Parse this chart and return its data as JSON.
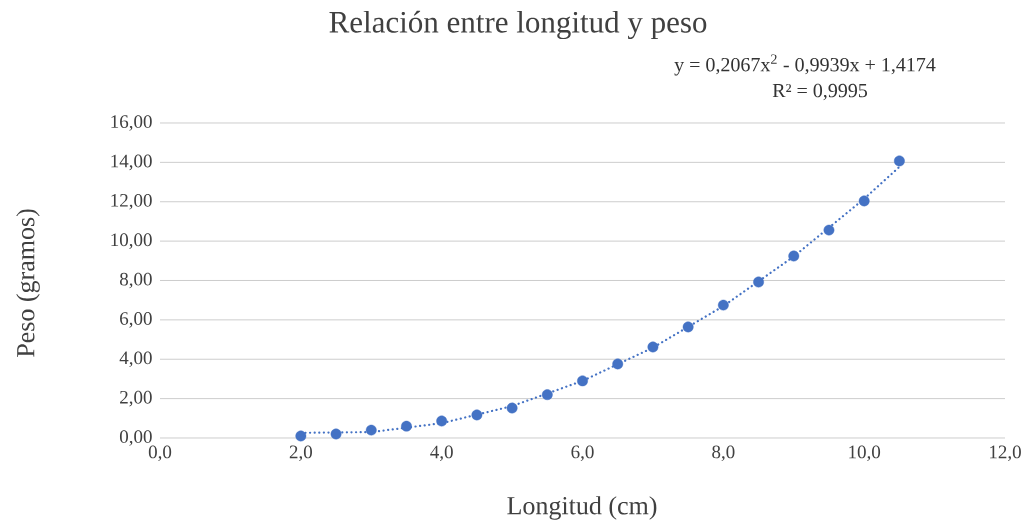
{
  "chart_data": {
    "type": "scatter",
    "title": "Relación entre longitud y peso",
    "xlabel": "Longitud (cm)",
    "ylabel": "Peso (gramos)",
    "annotations": [
      "y = 0,2067x$^{2}$ - 0,9939x + 1,4174",
      "R² = 0,9995"
    ],
    "series": [
      {
        "color": "#4472c4",
        "marker": "circle",
        "x": [
          2.0,
          2.5,
          3.0,
          3.5,
          4.0,
          4.5,
          5.0,
          5.5,
          6.0,
          6.5,
          7.0,
          7.5,
          8.0,
          8.5,
          9.0,
          9.5,
          10.0,
          10.5
        ],
        "values": [
          0.1,
          0.2,
          0.4,
          0.6,
          0.86,
          1.17,
          1.52,
          2.2,
          2.9,
          3.76,
          4.62,
          5.64,
          6.75,
          7.92,
          9.24,
          10.56,
          12.04,
          14.07
        ]
      },
      {
        "type": "line",
        "color": "#4472c4",
        "marker": "none",
        "line_style": "dotted",
        "x": [
          2.0,
          3.0,
          4.0,
          5.0,
          6.0,
          7.0,
          8.0,
          9.0,
          10.0,
          10.5
        ],
        "values": [
          0.26,
          0.3,
          0.75,
          1.62,
          2.9,
          4.59,
          6.7,
          9.22,
          12.15,
          13.77
        ]
      }
    ],
    "xlim": [
      0,
      12
    ],
    "ylim": [
      0,
      16
    ],
    "xticks": [
      {
        "value": 0,
        "label": "0,0"
      },
      {
        "value": 2,
        "label": "2,0"
      },
      {
        "value": 4,
        "label": "4,0"
      },
      {
        "value": 6,
        "label": "6,0"
      },
      {
        "value": 8,
        "label": "8,0"
      },
      {
        "value": 10,
        "label": "10,0"
      },
      {
        "value": 12,
        "label": "12,0"
      }
    ],
    "yticks": [
      {
        "value": 0,
        "label": "0,00"
      },
      {
        "value": 2,
        "label": "2,00"
      },
      {
        "value": 4,
        "label": "4,00"
      },
      {
        "value": 6,
        "label": "6,00"
      },
      {
        "value": 8,
        "label": "8,00"
      },
      {
        "value": 10,
        "label": "10,00"
      },
      {
        "value": 12,
        "label": "12,00"
      },
      {
        "value": 14,
        "label": "14,00"
      },
      {
        "value": 16,
        "label": "16,00"
      }
    ],
    "grid": "y"
  }
}
